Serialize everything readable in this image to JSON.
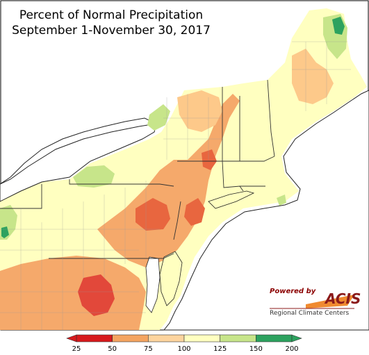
{
  "title": {
    "line1": "Percent of Normal Precipitation",
    "line2": "September 1-November 30, 2017"
  },
  "legend": {
    "bins": [
      {
        "color": "#d7191c"
      },
      {
        "color": "#f4a460"
      },
      {
        "color": "#fdd49e"
      },
      {
        "color": "#ffffc0"
      },
      {
        "color": "#c7e58a"
      },
      {
        "color": "#2ca25f"
      }
    ],
    "tick_labels": [
      "25",
      "50",
      "75",
      "100",
      "125",
      "150",
      "200"
    ]
  },
  "logo": {
    "powered_by": "Powered by",
    "acis": "ACIS",
    "subtitle": "Regional Climate Centers"
  },
  "palette": {
    "very_dry": "#d7191c",
    "dry": "#f08a4b",
    "below": "#fdc98a",
    "near": "#ffffc0",
    "wet": "#c7e58a",
    "very_wet": "#2ca25f",
    "water": "#ffffff",
    "border": "#444444"
  }
}
